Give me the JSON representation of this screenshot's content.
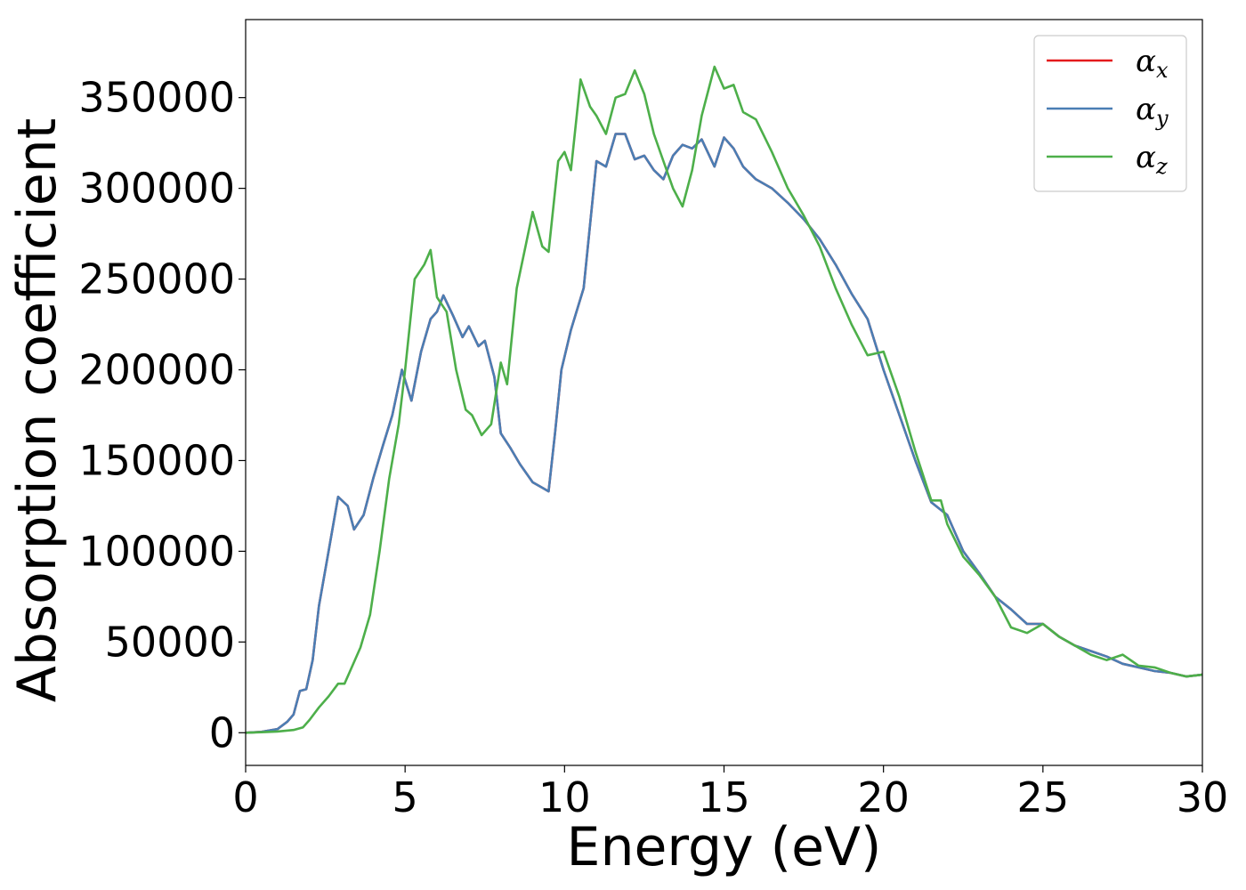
{
  "chart_data": {
    "type": "line",
    "title": "",
    "xlabel": "Energy (eV)",
    "ylabel": "Absorption coefficient",
    "xlim": [
      0,
      30
    ],
    "ylim": [
      -18000,
      393000
    ],
    "xticks": [
      0,
      5,
      10,
      15,
      20,
      25,
      30
    ],
    "xtick_labels": [
      "0",
      "5",
      "10",
      "15",
      "20",
      "25",
      "30"
    ],
    "yticks": [
      0,
      50000,
      100000,
      150000,
      200000,
      250000,
      300000,
      350000
    ],
    "ytick_labels": [
      "0",
      "50000",
      "100000",
      "150000",
      "200000",
      "250000",
      "300000",
      "350000"
    ],
    "grid": false,
    "legend_position": "top-right",
    "series": [
      {
        "name": "α_x",
        "legend_symbol": "α",
        "legend_subscript": "x",
        "color": "#e41a1c",
        "x": [
          0,
          0.5,
          1.0,
          1.3,
          1.5,
          1.7,
          1.9,
          2.1,
          2.3,
          2.6,
          2.9,
          3.2,
          3.4,
          3.7,
          4.0,
          4.3,
          4.6,
          4.9,
          5.2,
          5.5,
          5.8,
          6.0,
          6.2,
          6.5,
          6.8,
          7.0,
          7.3,
          7.5,
          7.8,
          8.0,
          8.3,
          8.6,
          9.0,
          9.3,
          9.5,
          9.7,
          9.9,
          10.2,
          10.6,
          11.0,
          11.3,
          11.6,
          11.9,
          12.2,
          12.5,
          12.8,
          13.1,
          13.4,
          13.7,
          14.0,
          14.3,
          14.7,
          15.0,
          15.3,
          15.6,
          16.0,
          16.5,
          17.0,
          17.5,
          18.0,
          18.5,
          19.0,
          19.5,
          20.0,
          20.5,
          21.0,
          21.5,
          22.0,
          22.5,
          23.0,
          23.5,
          24.0,
          24.5,
          25.0,
          25.5,
          26.0,
          26.5,
          27.0,
          27.5,
          28.0,
          28.5,
          29.0,
          29.5,
          30.0
        ],
        "y": [
          0,
          500,
          2000,
          6000,
          10000,
          23000,
          24000,
          40000,
          70000,
          100000,
          130000,
          125000,
          112000,
          120000,
          140000,
          158000,
          175000,
          200000,
          183000,
          210000,
          228000,
          232000,
          241000,
          230000,
          218000,
          224000,
          213000,
          216000,
          196000,
          165000,
          157000,
          148000,
          138000,
          135000,
          133000,
          165000,
          200000,
          222000,
          245000,
          315000,
          312000,
          330000,
          330000,
          316000,
          318000,
          310000,
          305000,
          318000,
          324000,
          322000,
          327000,
          312000,
          328000,
          322000,
          312000,
          305000,
          300000,
          292000,
          283000,
          272000,
          258000,
          242000,
          228000,
          200000,
          175000,
          150000,
          127000,
          120000,
          100000,
          88000,
          75000,
          68000,
          60000,
          60000,
          53000,
          48000,
          45000,
          42000,
          38000,
          36000,
          34000,
          33000,
          31000,
          32000
        ]
      },
      {
        "name": "α_y",
        "legend_symbol": "α",
        "legend_subscript": "y",
        "color": "#4a7eb4",
        "x": [
          0,
          0.5,
          1.0,
          1.3,
          1.5,
          1.7,
          1.9,
          2.1,
          2.3,
          2.6,
          2.9,
          3.2,
          3.4,
          3.7,
          4.0,
          4.3,
          4.6,
          4.9,
          5.2,
          5.5,
          5.8,
          6.0,
          6.2,
          6.5,
          6.8,
          7.0,
          7.3,
          7.5,
          7.8,
          8.0,
          8.3,
          8.6,
          9.0,
          9.3,
          9.5,
          9.7,
          9.9,
          10.2,
          10.6,
          11.0,
          11.3,
          11.6,
          11.9,
          12.2,
          12.5,
          12.8,
          13.1,
          13.4,
          13.7,
          14.0,
          14.3,
          14.7,
          15.0,
          15.3,
          15.6,
          16.0,
          16.5,
          17.0,
          17.5,
          18.0,
          18.5,
          19.0,
          19.5,
          20.0,
          20.5,
          21.0,
          21.5,
          22.0,
          22.5,
          23.0,
          23.5,
          24.0,
          24.5,
          25.0,
          25.5,
          26.0,
          26.5,
          27.0,
          27.5,
          28.0,
          28.5,
          29.0,
          29.5,
          30.0
        ],
        "y": [
          0,
          500,
          2000,
          6000,
          10000,
          23000,
          24000,
          40000,
          70000,
          100000,
          130000,
          125000,
          112000,
          120000,
          140000,
          158000,
          175000,
          200000,
          183000,
          210000,
          228000,
          232000,
          241000,
          230000,
          218000,
          224000,
          213000,
          216000,
          196000,
          165000,
          157000,
          148000,
          138000,
          135000,
          133000,
          165000,
          200000,
          222000,
          245000,
          315000,
          312000,
          330000,
          330000,
          316000,
          318000,
          310000,
          305000,
          318000,
          324000,
          322000,
          327000,
          312000,
          328000,
          322000,
          312000,
          305000,
          300000,
          292000,
          283000,
          272000,
          258000,
          242000,
          228000,
          200000,
          175000,
          150000,
          127000,
          120000,
          100000,
          88000,
          75000,
          68000,
          60000,
          60000,
          53000,
          48000,
          45000,
          42000,
          38000,
          36000,
          34000,
          33000,
          31000,
          32000
        ]
      },
      {
        "name": "α_z",
        "legend_symbol": "α",
        "legend_subscript": "z",
        "color": "#4daf4a",
        "x": [
          0,
          0.5,
          1.0,
          1.5,
          1.8,
          2.0,
          2.3,
          2.6,
          2.9,
          3.1,
          3.3,
          3.6,
          3.9,
          4.2,
          4.5,
          4.8,
          5.0,
          5.3,
          5.6,
          5.8,
          6.0,
          6.3,
          6.6,
          6.9,
          7.1,
          7.4,
          7.7,
          8.0,
          8.2,
          8.5,
          8.8,
          9.0,
          9.3,
          9.5,
          9.8,
          10.0,
          10.2,
          10.5,
          10.8,
          11.0,
          11.3,
          11.6,
          11.9,
          12.2,
          12.5,
          12.8,
          13.1,
          13.4,
          13.7,
          14.0,
          14.3,
          14.7,
          15.0,
          15.3,
          15.6,
          16.0,
          16.5,
          17.0,
          17.5,
          18.0,
          18.5,
          19.0,
          19.5,
          20.0,
          20.5,
          21.0,
          21.5,
          21.8,
          22.0,
          22.5,
          23.0,
          23.5,
          24.0,
          24.5,
          25.0,
          25.5,
          26.0,
          26.5,
          27.0,
          27.5,
          28.0,
          28.5,
          29.0,
          29.5,
          30.0
        ],
        "y": [
          0,
          300,
          700,
          1500,
          3000,
          7000,
          14000,
          20000,
          27000,
          27000,
          35000,
          47000,
          65000,
          100000,
          140000,
          170000,
          200000,
          250000,
          258000,
          266000,
          240000,
          232000,
          200000,
          178000,
          175000,
          164000,
          170000,
          204000,
          192000,
          245000,
          270000,
          287000,
          268000,
          265000,
          315000,
          320000,
          310000,
          360000,
          345000,
          340000,
          330000,
          350000,
          352000,
          365000,
          352000,
          330000,
          315000,
          300000,
          290000,
          310000,
          340000,
          367000,
          355000,
          357000,
          342000,
          338000,
          320000,
          300000,
          285000,
          268000,
          245000,
          225000,
          208000,
          210000,
          185000,
          155000,
          128000,
          128000,
          115000,
          97000,
          87000,
          75000,
          58000,
          55000,
          60000,
          53000,
          48000,
          43000,
          40000,
          43000,
          37000,
          36000,
          33000,
          31000,
          32000
        ]
      }
    ]
  }
}
